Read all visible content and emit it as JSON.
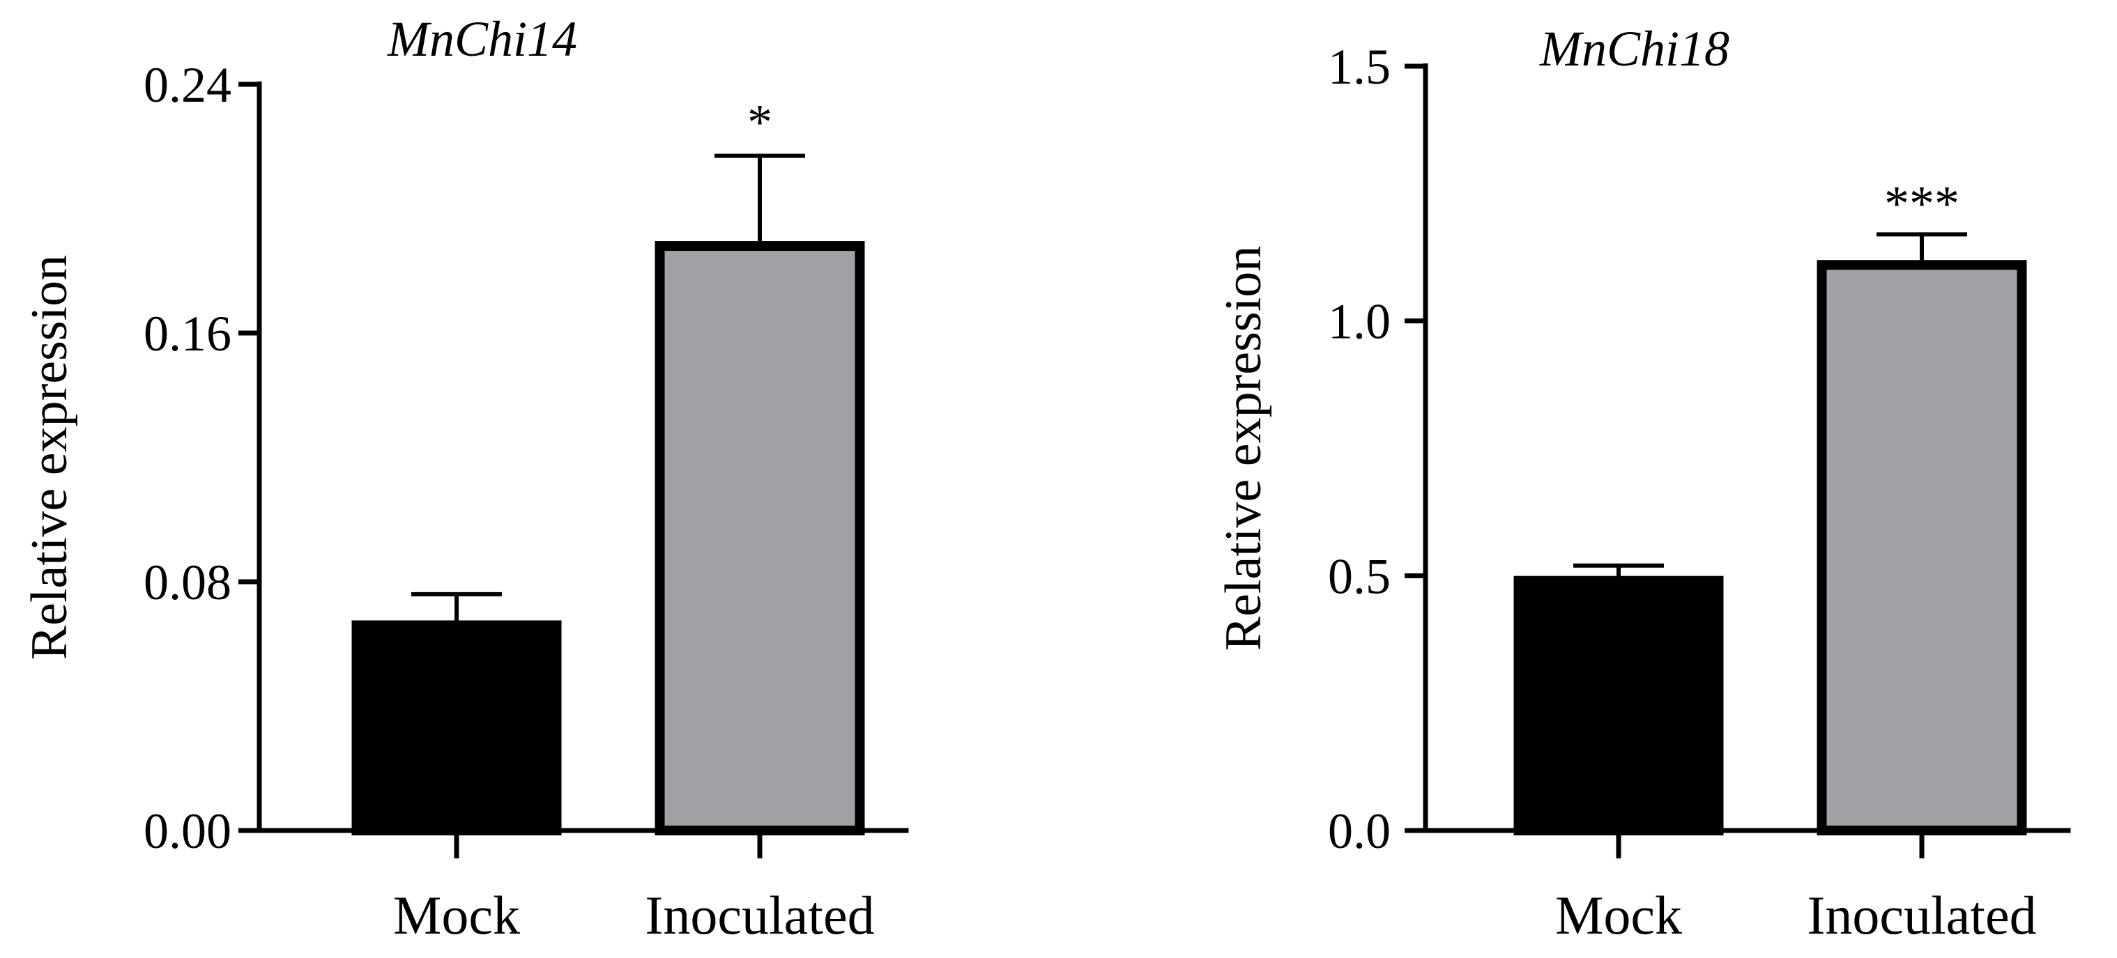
{
  "chart_data": [
    {
      "type": "bar",
      "title": "MnChi14",
      "xlabel": "",
      "ylabel": "Relative expression",
      "categories": [
        "Mock",
        "Inoculated"
      ],
      "values": [
        0.066,
        0.188
      ],
      "errors": [
        0.01,
        0.029
      ],
      "significance": [
        "",
        "*"
      ],
      "bar_colors": [
        "#000000",
        "#a2a2a6"
      ],
      "ylim": [
        0,
        0.24
      ],
      "yticks": [
        0.0,
        0.08,
        0.16,
        0.24
      ],
      "ytick_labels": [
        "0.00",
        "0.08",
        "0.16",
        "0.24"
      ],
      "grid": false
    },
    {
      "type": "bar",
      "title": "MnChi18",
      "xlabel": "",
      "ylabel": "Relative expression",
      "categories": [
        "Mock",
        "Inoculated"
      ],
      "values": [
        0.49,
        1.11
      ],
      "errors": [
        0.03,
        0.06
      ],
      "significance": [
        "",
        "***"
      ],
      "bar_colors": [
        "#000000",
        "#a2a2a6"
      ],
      "ylim": [
        0,
        1.5
      ],
      "yticks": [
        0.0,
        0.5,
        1.0,
        1.5
      ],
      "ytick_labels": [
        "0.0",
        "0.5",
        "1.0",
        "1.5"
      ],
      "grid": false
    }
  ]
}
